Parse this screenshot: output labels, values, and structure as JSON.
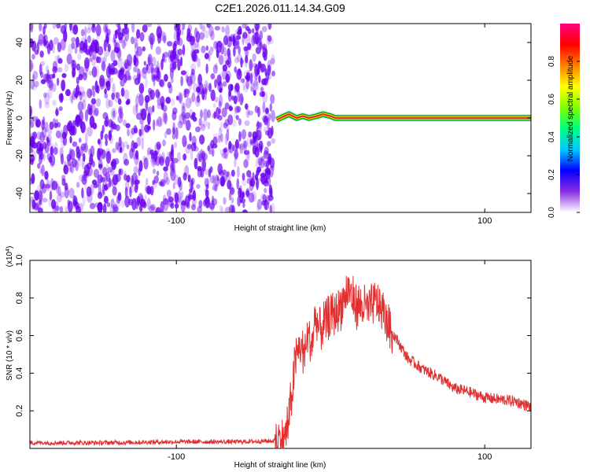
{
  "title": "C2E1.2026.011.14.34.G09",
  "colors": {
    "noise_purple": "#6a00f0",
    "signal_red": "#e03030",
    "colorbar_stops": [
      "#ffffff",
      "#8a2be2",
      "#0000ff",
      "#00c8ff",
      "#00ff80",
      "#80ff00",
      "#ffff00",
      "#ff8000",
      "#ff0000",
      "#ff0080"
    ]
  },
  "chart_data": [
    {
      "type": "heatmap",
      "xlabel": "Height of straight line (km)",
      "ylabel": "Frequency (Hz)",
      "xlim": [
        -195,
        130
      ],
      "ylim": [
        -50,
        50
      ],
      "xticks": [
        -100,
        100
      ],
      "yticks": [
        -40,
        -20,
        0,
        20,
        40
      ],
      "noise_region_x": [
        -195,
        -37
      ],
      "signal_track": {
        "description_free": true,
        "points": [
          [
            -35,
            -1
          ],
          [
            -30,
            1
          ],
          [
            -27,
            2
          ],
          [
            -22,
            0
          ],
          [
            -18,
            1
          ],
          [
            -14,
            0
          ],
          [
            -9,
            1
          ],
          [
            -5,
            2
          ],
          [
            0,
            1
          ],
          [
            3,
            0
          ],
          [
            8,
            0
          ],
          [
            130,
            0
          ]
        ]
      },
      "colorbar": {
        "label": "Normalized spectral amplitude",
        "range": [
          0,
          1
        ],
        "ticks": [
          "0.0",
          "0.2",
          "0.4",
          "0.6",
          "0.8"
        ]
      }
    },
    {
      "type": "line",
      "xlabel": "Height of straight line (km)",
      "ylabel": "SNR (10 * v/v)",
      "y_multiplier": "(x10",
      "y_multiplier_exp": "4",
      "y_multiplier_close": ")",
      "xlim": [
        -195,
        130
      ],
      "ylim": [
        0,
        1.0
      ],
      "xticks": [
        -100,
        100
      ],
      "yticks": [
        "0.2",
        "0.4",
        "0.6",
        "0.8",
        "1.0"
      ],
      "series": [
        {
          "color": "#e03030",
          "x": [
            -195,
            -150,
            -100,
            -60,
            -35,
            -30,
            -27,
            -25,
            -23,
            -20,
            -17,
            -15,
            -12,
            -10,
            -7,
            -5,
            -2,
            0,
            3,
            5,
            8,
            10,
            12,
            15,
            18,
            22,
            25,
            30,
            33,
            35,
            40,
            45,
            50,
            60,
            70,
            80,
            90,
            100,
            110,
            120,
            130
          ],
          "values": [
            0.03,
            0.03,
            0.035,
            0.035,
            0.04,
            0.05,
            0.15,
            0.3,
            0.45,
            0.55,
            0.5,
            0.6,
            0.55,
            0.7,
            0.62,
            0.65,
            0.68,
            0.7,
            0.72,
            0.74,
            0.78,
            0.82,
            0.85,
            0.78,
            0.76,
            0.75,
            0.74,
            0.78,
            0.74,
            0.7,
            0.62,
            0.55,
            0.48,
            0.42,
            0.38,
            0.32,
            0.3,
            0.27,
            0.26,
            0.25,
            0.22
          ]
        }
      ]
    }
  ]
}
